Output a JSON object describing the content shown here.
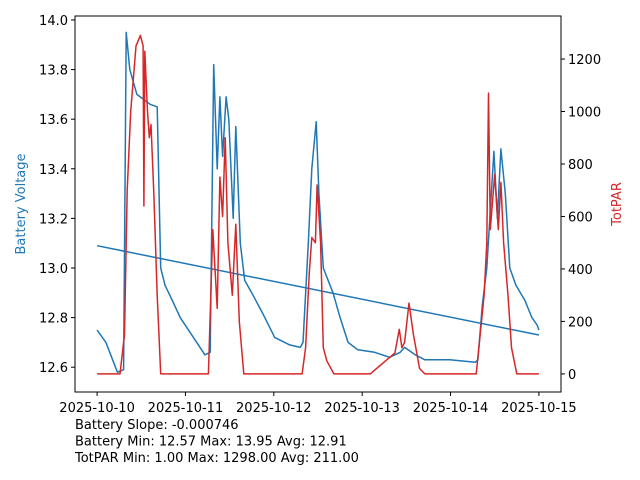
{
  "chart_data": {
    "type": "line",
    "y_label": "Battery Voltage",
    "y2_label": "TotPAR",
    "y_label_color": "#1f77b4",
    "y2_label_color": "#d62728",
    "xlim": [
      "2025-10-09T18:00",
      "2025-10-15T06:00"
    ],
    "xticks": [
      "2025-10-10",
      "2025-10-11",
      "2025-10-12",
      "2025-10-13",
      "2025-10-14",
      "2025-10-15"
    ],
    "ylim": [
      12.5,
      14.016
    ],
    "yticks": [
      12.6,
      12.8,
      {
        "value": 13,
        "label": "13.0"
      },
      13.2,
      13.4,
      13.6,
      13.8,
      {
        "value": 14,
        "label": "14.0"
      }
    ],
    "y2lim": [
      -69,
      1364
    ],
    "y2ticks": [
      0,
      200,
      400,
      600,
      800,
      1000,
      1200
    ],
    "series": [
      {
        "color": "#1f77b4",
        "x": [
          "2025-10-10T00:00",
          "2025-10-10T02:24",
          "2025-10-10T05:31",
          "2025-10-10T07:12",
          "2025-10-10T07:55",
          "2025-10-10T08:53",
          "2025-10-10T10:48",
          "2025-10-10T14:24",
          "2025-10-10T16:19",
          "2025-10-10T17:17",
          "2025-10-10T18:29",
          "2025-10-10T20:24",
          "2025-10-10T22:34",
          "2025-10-11T02:10",
          "2025-10-11T05:17",
          "2025-10-11T06:43",
          "2025-10-11T07:41",
          "2025-10-11T08:38",
          "2025-10-11T09:22",
          "2025-10-11T10:05",
          "2025-10-11T11:02",
          "2025-10-11T11:46",
          "2025-10-11T12:58",
          "2025-10-11T13:41",
          "2025-10-11T14:53",
          "2025-10-11T16:05",
          "2025-10-11T18:00",
          "2025-10-11T20:53",
          "2025-10-12T00:14",
          "2025-10-12T04:19",
          "2025-10-12T07:12",
          "2025-10-12T07:55",
          "2025-10-12T09:22",
          "2025-10-12T10:19",
          "2025-10-12T11:31",
          "2025-10-12T12:14",
          "2025-10-12T13:26",
          "2025-10-12T16:05",
          "2025-10-12T18:00",
          "2025-10-12T20:10",
          "2025-10-12T22:48",
          "2025-10-13T03:22",
          "2025-10-13T07:26",
          "2025-10-13T10:19",
          "2025-10-13T11:31",
          "2025-10-13T14:24",
          "2025-10-13T17:02",
          "2025-10-13T23:46",
          "2025-10-14T06:43",
          "2025-10-14T07:26",
          "2025-10-14T08:38",
          "2025-10-14T09:50",
          "2025-10-14T11:46",
          "2025-10-14T12:43",
          "2025-10-14T13:41",
          "2025-10-14T14:53",
          "2025-10-14T16:05",
          "2025-10-14T17:46",
          "2025-10-14T20:10",
          "2025-10-14T22:05",
          "2025-10-14T23:31",
          "2025-10-15T00:00"
        ],
        "values": [
          12.75,
          12.7,
          12.58,
          12.59,
          13.95,
          13.8,
          13.7,
          13.66,
          13.65,
          13.0,
          12.93,
          12.87,
          12.8,
          12.72,
          12.65,
          12.66,
          13.82,
          13.4,
          13.69,
          13.45,
          13.69,
          13.6,
          13.2,
          13.57,
          13.1,
          12.95,
          12.9,
          12.82,
          12.72,
          12.69,
          12.68,
          12.7,
          13.1,
          13.4,
          13.59,
          13.3,
          13.0,
          12.9,
          12.8,
          12.7,
          12.67,
          12.66,
          12.64,
          12.66,
          12.68,
          12.65,
          12.63,
          12.63,
          12.62,
          12.63,
          12.85,
          13.0,
          13.47,
          13.2,
          13.48,
          13.3,
          13.0,
          12.93,
          12.87,
          12.8,
          12.77,
          12.75
        ]
      },
      {
        "color": "#1f77b4",
        "x": [
          "2025-10-10T00:00",
          "2025-10-15T00:00"
        ],
        "values": [
          13.09,
          12.73
        ]
      },
      {
        "color": "#d62728",
        "axis": "y2",
        "x": [
          "2025-10-10T00:00",
          "2025-10-10T06:14",
          "2025-10-10T07:26",
          "2025-10-10T08:10",
          "2025-10-10T09:07",
          "2025-10-10T10:34",
          "2025-10-10T11:46",
          "2025-10-10T12:29",
          "2025-10-10T12:43",
          "2025-10-10T12:58",
          "2025-10-10T13:41",
          "2025-10-10T14:10",
          "2025-10-10T14:38",
          "2025-10-10T15:22",
          "2025-10-10T16:19",
          "2025-10-10T17:17",
          "2025-10-11T06:14",
          "2025-10-11T07:26",
          "2025-10-11T08:38",
          "2025-10-11T09:22",
          "2025-10-11T10:05",
          "2025-10-11T10:48",
          "2025-10-11T11:31",
          "2025-10-11T12:43",
          "2025-10-11T13:41",
          "2025-10-11T14:38",
          "2025-10-11T15:50",
          "2025-10-12T07:41",
          "2025-10-12T08:38",
          "2025-10-12T09:36",
          "2025-10-12T10:19",
          "2025-10-12T11:17",
          "2025-10-12T11:46",
          "2025-10-12T12:43",
          "2025-10-12T13:26",
          "2025-10-12T14:24",
          "2025-10-12T16:19",
          "2025-10-13T02:10",
          "2025-10-13T08:53",
          "2025-10-13T10:05",
          "2025-10-13T10:48",
          "2025-10-13T11:31",
          "2025-10-13T12:43",
          "2025-10-13T13:55",
          "2025-10-13T15:36",
          "2025-10-13T17:02",
          "2025-10-14T06:58",
          "2025-10-14T08:24",
          "2025-10-14T09:07",
          "2025-10-14T09:50",
          "2025-10-14T10:19",
          "2025-10-14T10:48",
          "2025-10-14T12:00",
          "2025-10-14T12:58",
          "2025-10-14T13:41",
          "2025-10-14T14:24",
          "2025-10-14T15:36",
          "2025-10-14T16:34",
          "2025-10-14T18:00",
          "2025-10-15T00:00"
        ],
        "values": [
          0,
          0,
          150,
          700,
          1000,
          1250,
          1290,
          1250,
          640,
          1230,
          1000,
          900,
          950,
          700,
          300,
          0,
          0,
          550,
          250,
          750,
          600,
          900,
          500,
          300,
          570,
          200,
          0,
          0,
          100,
          380,
          520,
          500,
          720,
          500,
          100,
          50,
          0,
          0,
          80,
          170,
          100,
          120,
          270,
          150,
          20,
          0,
          0,
          200,
          300,
          500,
          1070,
          550,
          760,
          550,
          730,
          500,
          300,
          100,
          0,
          0
        ]
      }
    ],
    "annotations": [
      "Battery Slope: -0.000746",
      "Battery Min: 12.57 Max: 13.95 Avg: 12.91",
      "TotPAR Min: 1.00 Max: 1298.00 Avg: 211.00"
    ]
  }
}
